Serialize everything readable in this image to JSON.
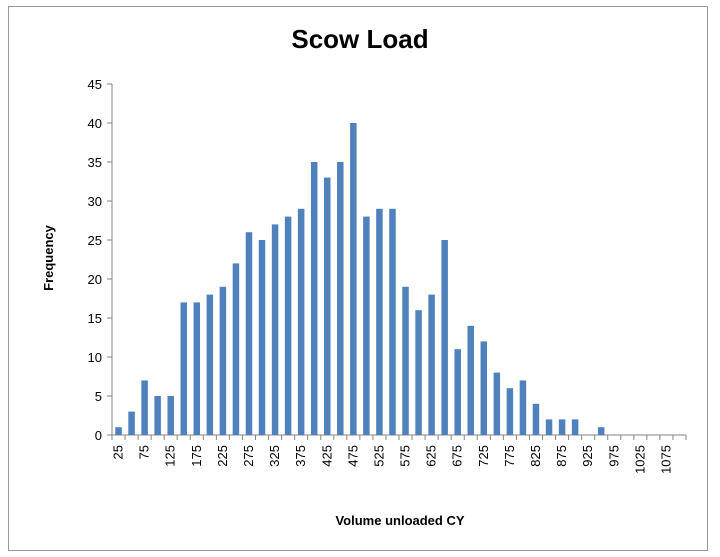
{
  "chart_data": {
    "type": "bar",
    "title": "Scow Load",
    "xlabel": "Volume unloaded CY",
    "ylabel": "Frequency",
    "ylim": [
      0,
      45
    ],
    "yticks": [
      0,
      5,
      10,
      15,
      20,
      25,
      30,
      35,
      40,
      45
    ],
    "grid": false,
    "legend": "none",
    "bar_color": "#4f81bd",
    "x": [
      25,
      50,
      75,
      100,
      125,
      150,
      175,
      200,
      225,
      250,
      275,
      300,
      325,
      350,
      375,
      400,
      425,
      450,
      475,
      500,
      525,
      550,
      575,
      600,
      625,
      650,
      675,
      700,
      725,
      750,
      775,
      800,
      825,
      850,
      875,
      900,
      925,
      950,
      975,
      1000,
      1025,
      1050,
      1075,
      1100
    ],
    "values": [
      1,
      3,
      7,
      5,
      5,
      17,
      17,
      18,
      19,
      22,
      26,
      25,
      27,
      28,
      29,
      35,
      33,
      35,
      40,
      28,
      29,
      29,
      19,
      16,
      18,
      25,
      11,
      14,
      12,
      8,
      6,
      7,
      4,
      2,
      2,
      2,
      0,
      1,
      0,
      0,
      0,
      0,
      0,
      0
    ],
    "xtick_labels": [
      "25",
      "75",
      "125",
      "175",
      "225",
      "275",
      "325",
      "375",
      "425",
      "475",
      "525",
      "575",
      "625",
      "675",
      "725",
      "775",
      "825",
      "875",
      "925",
      "975",
      "1025",
      "1075"
    ]
  }
}
